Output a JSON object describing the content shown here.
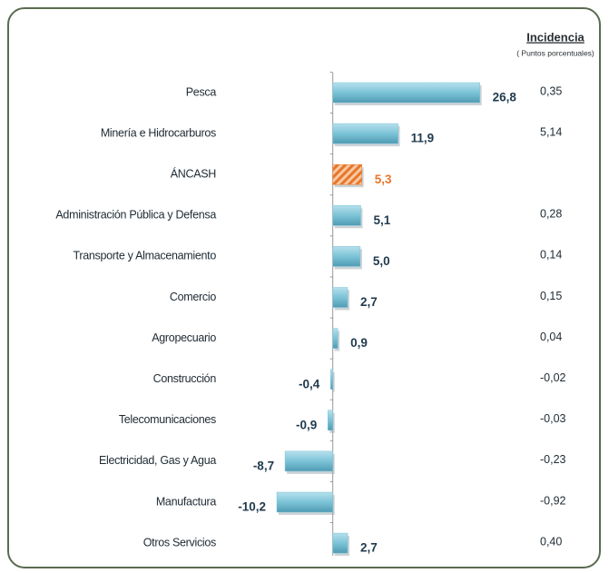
{
  "chart_data": {
    "type": "bar",
    "orientation": "horizontal",
    "categories": [
      "Pesca",
      "Minería e Hidrocarburos",
      "ÁNCASH",
      "Administración Pública y Defensa",
      "Transporte y Almacenamiento",
      "Comercio",
      "Agropecuario",
      "Construcción",
      "Telecomunicaciones",
      "Electricidad, Gas y Agua",
      "Manufactura",
      "Otros Servicios"
    ],
    "values": [
      26.8,
      11.9,
      5.3,
      5.1,
      5.0,
      2.7,
      0.9,
      -0.4,
      -0.9,
      -8.7,
      -10.2,
      2.7
    ],
    "value_labels": [
      "26,8",
      "11,9",
      "5,3",
      "5,1",
      "5,0",
      "2,7",
      "0,9",
      "-0,4",
      "-0,9",
      "-8,7",
      "-10,2",
      "2,7"
    ],
    "colors": [
      "#7cc3d7",
      "#7cc3d7",
      "#e8772a",
      "#7cc3d7",
      "#7cc3d7",
      "#7cc3d7",
      "#7cc3d7",
      "#7cc3d7",
      "#7cc3d7",
      "#7cc3d7",
      "#7cc3d7",
      "#7cc3d7"
    ],
    "label_colors": [
      "#1f3a4d",
      "#1f3a4d",
      "#e8772a",
      "#1f3a4d",
      "#1f3a4d",
      "#1f3a4d",
      "#1f3a4d",
      "#1f3a4d",
      "#1f3a4d",
      "#1f3a4d",
      "#1f3a4d",
      "#1f3a4d"
    ],
    "xlim": [
      -15,
      30
    ],
    "incidence": {
      "title": "Incidencia",
      "subtitle": "( Puntos porcentuales)",
      "values": [
        0.35,
        5.14,
        null,
        0.28,
        0.14,
        0.15,
        0.04,
        -0.02,
        -0.03,
        -0.23,
        -0.92,
        0.4
      ],
      "value_labels": [
        "0,35",
        "5,14",
        null,
        "0,28",
        "0,14",
        "0,15",
        "0,04",
        "-0,02",
        "-0,03",
        "-0,23",
        "-0,92",
        "0,40"
      ]
    }
  }
}
